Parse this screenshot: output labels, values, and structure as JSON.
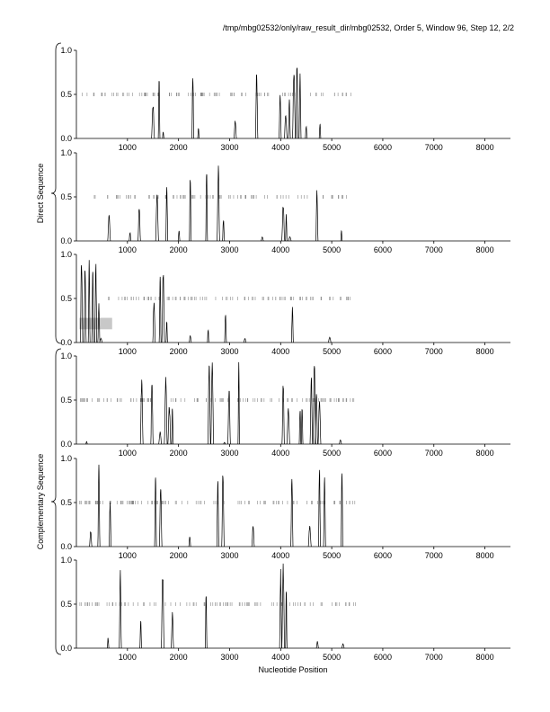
{
  "header": {
    "path_text": "/tmp/mbg02532/only/raw_result_dir/mbg02532, Order 5, Window 96, Step 12, 2/2"
  },
  "xaxis_label": "Nucleotide Position",
  "group_labels": {
    "direct": "Direct Sequence",
    "complementary": "Complementary Sequence"
  },
  "chart_data": [
    {
      "type": "line",
      "group": "direct",
      "xlim": [
        0,
        8500
      ],
      "ylim": [
        0,
        1.0
      ],
      "xticks": [
        1000,
        2000,
        3000,
        4000,
        5000,
        6000,
        7000,
        8000
      ],
      "yticks": [
        0.0,
        0.5,
        1.0
      ],
      "xtick_labels": [
        "1000",
        "2000",
        "3000",
        "4000",
        "5000",
        "6000",
        "7000",
        "8000"
      ],
      "ytick_labels": [
        "0.0",
        "0.5",
        "1.0"
      ],
      "peaks": [
        [
          1500,
          0.4
        ],
        [
          1620,
          0.72
        ],
        [
          1700,
          0.08
        ],
        [
          2280,
          0.78
        ],
        [
          2390,
          0.12
        ],
        [
          3110,
          0.22
        ],
        [
          3530,
          0.78
        ],
        [
          3990,
          0.5
        ],
        [
          4100,
          0.28
        ],
        [
          4170,
          0.45
        ],
        [
          4260,
          0.82
        ],
        [
          4320,
          0.9
        ],
        [
          4380,
          0.75
        ],
        [
          4500,
          0.15
        ],
        [
          4770,
          0.18
        ]
      ],
      "marker_level": 0.5,
      "marker_range": [
        80,
        5450
      ],
      "marker_count": 95
    },
    {
      "type": "line",
      "group": "direct",
      "xlim": [
        0,
        8500
      ],
      "ylim": [
        0,
        1.0
      ],
      "xticks": [
        1000,
        2000,
        3000,
        4000,
        5000,
        6000,
        7000,
        8000
      ],
      "yticks": [
        0.0,
        0.5,
        1.0
      ],
      "xtick_labels": [
        "1000",
        "2000",
        "3000",
        "4000",
        "5000",
        "6000",
        "7000",
        "8000"
      ],
      "ytick_labels": [
        "0.0",
        "0.5",
        "1.0"
      ],
      "peaks": [
        [
          640,
          0.3
        ],
        [
          1050,
          0.1
        ],
        [
          1230,
          0.42
        ],
        [
          1580,
          0.6
        ],
        [
          1770,
          0.62
        ],
        [
          2010,
          0.12
        ],
        [
          2230,
          0.78
        ],
        [
          2550,
          0.88
        ],
        [
          2780,
          0.86
        ],
        [
          2880,
          0.25
        ],
        [
          3640,
          0.05
        ],
        [
          4050,
          0.42
        ],
        [
          4110,
          0.32
        ],
        [
          4180,
          0.05
        ],
        [
          4710,
          0.58
        ],
        [
          5190,
          0.12
        ]
      ],
      "marker_level": 0.5,
      "marker_range": [
        350,
        5400
      ],
      "marker_count": 90
    },
    {
      "type": "line",
      "group": "direct",
      "xlim": [
        0,
        8500
      ],
      "ylim": [
        0,
        1.0
      ],
      "xticks": [
        1000,
        2000,
        3000,
        4000,
        5000,
        6000,
        7000,
        8000
      ],
      "yticks": [
        0.0,
        0.5,
        1.0
      ],
      "xtick_labels": [
        "1000",
        "2000",
        "3000",
        "4000",
        "5000",
        "6000",
        "7000",
        "8000"
      ],
      "ytick_labels": [
        "0.0",
        "0.5",
        "1.0"
      ],
      "peaks": [
        [
          100,
          0.98
        ],
        [
          170,
          0.92
        ],
        [
          250,
          0.95
        ],
        [
          320,
          0.9
        ],
        [
          380,
          0.97
        ],
        [
          440,
          0.45
        ],
        [
          480,
          0.05
        ],
        [
          1520,
          0.5
        ],
        [
          1640,
          0.78
        ],
        [
          1700,
          0.85
        ],
        [
          1770,
          0.25
        ],
        [
          2230,
          0.08
        ],
        [
          2580,
          0.15
        ],
        [
          2920,
          0.35
        ],
        [
          3300,
          0.05
        ],
        [
          4230,
          0.42
        ],
        [
          4960,
          0.06
        ]
      ],
      "marker_level": 0.5,
      "marker_range": [
        620,
        5400
      ],
      "marker_count": 95,
      "gray_box": {
        "x": [
          60,
          700
        ],
        "y": [
          0.15,
          0.28
        ]
      }
    },
    {
      "type": "line",
      "group": "complementary",
      "xlim": [
        0,
        8500
      ],
      "ylim": [
        0,
        1.0
      ],
      "xticks": [
        1000,
        2000,
        3000,
        4000,
        5000,
        6000,
        7000,
        8000
      ],
      "yticks": [
        0.0,
        0.5,
        1.0
      ],
      "xtick_labels": [
        "1000",
        "2000",
        "3000",
        "4000",
        "5000",
        "6000",
        "7000",
        "8000"
      ],
      "ytick_labels": [
        "0.0",
        "0.5",
        "1.0"
      ],
      "peaks": [
        [
          200,
          0.03
        ],
        [
          1280,
          0.76
        ],
        [
          1480,
          0.78
        ],
        [
          1640,
          0.15
        ],
        [
          1750,
          0.8
        ],
        [
          1820,
          0.45
        ],
        [
          1880,
          0.42
        ],
        [
          2600,
          0.98
        ],
        [
          2660,
          0.95
        ],
        [
          2900,
          0.02
        ],
        [
          2990,
          0.65
        ],
        [
          3180,
          0.95
        ],
        [
          4050,
          0.72
        ],
        [
          4150,
          0.42
        ],
        [
          4380,
          0.42
        ],
        [
          4420,
          0.45
        ],
        [
          4600,
          0.78
        ],
        [
          4660,
          0.95
        ],
        [
          4700,
          0.6
        ],
        [
          4760,
          0.55
        ],
        [
          5170,
          0.05
        ]
      ],
      "marker_level": 0.5,
      "marker_range": [
        50,
        5480
      ],
      "marker_count": 110
    },
    {
      "type": "line",
      "group": "complementary",
      "xlim": [
        0,
        8500
      ],
      "ylim": [
        0,
        1.0
      ],
      "xticks": [
        1000,
        2000,
        3000,
        4000,
        5000,
        6000,
        7000,
        8000
      ],
      "yticks": [
        0.0,
        0.5,
        1.0
      ],
      "xtick_labels": [
        "1000",
        "2000",
        "3000",
        "4000",
        "5000",
        "6000",
        "7000",
        "8000"
      ],
      "ytick_labels": [
        "0.0",
        "0.5",
        "1.0"
      ],
      "peaks": [
        [
          280,
          0.18
        ],
        [
          440,
          0.95
        ],
        [
          660,
          0.55
        ],
        [
          1550,
          0.88
        ],
        [
          1650,
          0.75
        ],
        [
          2220,
          0.12
        ],
        [
          2770,
          0.82
        ],
        [
          2870,
          0.9
        ],
        [
          3460,
          0.25
        ],
        [
          4220,
          0.85
        ],
        [
          4570,
          0.25
        ],
        [
          4760,
          0.96
        ],
        [
          4860,
          0.8
        ],
        [
          5200,
          0.95
        ]
      ],
      "marker_level": 0.5,
      "marker_range": [
        60,
        5520
      ],
      "marker_count": 105
    },
    {
      "type": "line",
      "group": "complementary",
      "xlim": [
        0,
        8500
      ],
      "ylim": [
        0,
        1.0
      ],
      "xticks": [
        1000,
        2000,
        3000,
        4000,
        5000,
        6000,
        7000,
        8000
      ],
      "yticks": [
        0.0,
        0.5,
        1.0
      ],
      "xtick_labels": [
        "1000",
        "2000",
        "3000",
        "4000",
        "5000",
        "6000",
        "7000",
        "8000"
      ],
      "ytick_labels": [
        "0.0",
        "0.5",
        "1.0"
      ],
      "peaks": [
        [
          620,
          0.12
        ],
        [
          860,
          0.92
        ],
        [
          1260,
          0.32
        ],
        [
          1690,
          0.9
        ],
        [
          1880,
          0.42
        ],
        [
          2540,
          0.65
        ],
        [
          4000,
          0.92
        ],
        [
          4050,
          0.96
        ],
        [
          4110,
          0.7
        ],
        [
          4720,
          0.08
        ],
        [
          5220,
          0.05
        ]
      ],
      "marker_level": 0.5,
      "marker_range": [
        60,
        5500
      ],
      "marker_count": 100
    }
  ]
}
